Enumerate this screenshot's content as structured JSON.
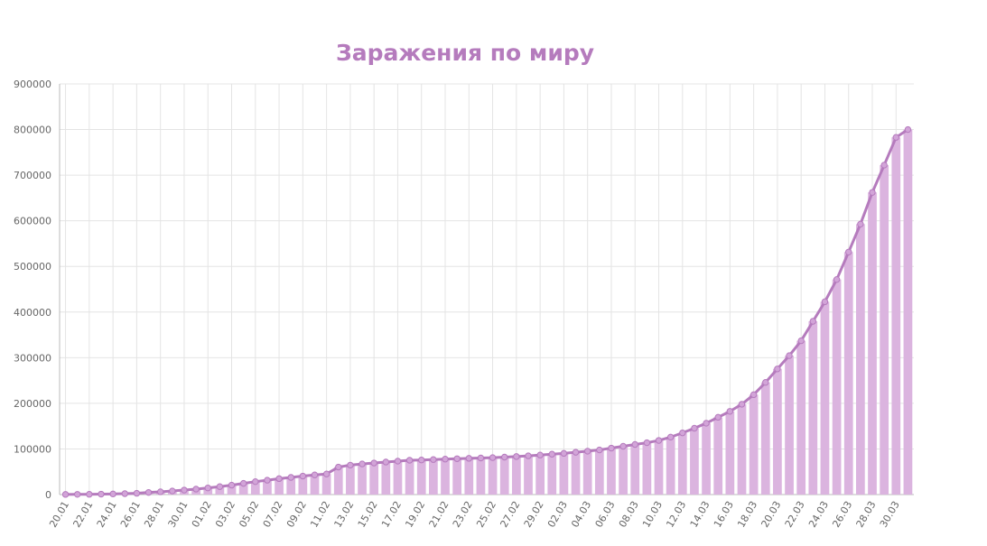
{
  "chart_data": {
    "type": "bar",
    "title": "Заражения по миру",
    "xlabel": "",
    "ylabel": "",
    "ylim": [
      0,
      900000
    ],
    "yticks": [
      0,
      100000,
      200000,
      300000,
      400000,
      500000,
      600000,
      700000,
      800000,
      900000
    ],
    "grid": true,
    "legend": "none",
    "colors": {
      "bar": "#dbb4df",
      "line": "#b57bbd",
      "title": "#b57bbd",
      "grid": "#e4e4e4",
      "axis": "#bbbbbb"
    },
    "categories": [
      "20.01",
      "21.01",
      "22.01",
      "23.01",
      "24.01",
      "25.01",
      "26.01",
      "27.01",
      "28.01",
      "29.01",
      "30.01",
      "31.01",
      "01.02",
      "02.02",
      "03.02",
      "04.02",
      "05.02",
      "06.02",
      "07.02",
      "08.02",
      "09.02",
      "10.02",
      "11.02",
      "12.02",
      "13.02",
      "14.02",
      "15.02",
      "16.02",
      "17.02",
      "18.02",
      "19.02",
      "20.02",
      "21.02",
      "22.02",
      "23.02",
      "24.02",
      "25.02",
      "26.02",
      "27.02",
      "28.02",
      "29.02",
      "01.03",
      "02.03",
      "03.03",
      "04.03",
      "05.03",
      "06.03",
      "07.03",
      "08.03",
      "09.03",
      "10.03",
      "11.03",
      "12.03",
      "13.03",
      "14.03",
      "15.03",
      "16.03",
      "17.03",
      "18.03",
      "19.03",
      "20.03",
      "21.03",
      "22.03",
      "23.03",
      "24.03",
      "25.03",
      "26.03",
      "27.03",
      "28.03",
      "29.03",
      "30.03",
      "31.03"
    ],
    "x_tick_labels": [
      "20.01",
      "22.01",
      "24.01",
      "26.01",
      "28.01",
      "30.01",
      "01.02",
      "03.02",
      "05.02",
      "07.02",
      "09.02",
      "11.02",
      "13.02",
      "15.02",
      "17.02",
      "19.02",
      "21.02",
      "23.02",
      "25.02",
      "27.02",
      "29.02",
      "02.03",
      "04.03",
      "06.03",
      "08.03",
      "10.03",
      "12.03",
      "14.03",
      "16.03",
      "18.03",
      "20.03",
      "22.03",
      "24.03",
      "26.03",
      "28.03",
      "30.03"
    ],
    "series": [
      {
        "values": [
          300,
          400,
          600,
          900,
          1300,
          2000,
          2800,
          4600,
          6000,
          7800,
          9800,
          11900,
          14500,
          17400,
          20600,
          24500,
          28300,
          31500,
          34900,
          37600,
          40500,
          43100,
          45100,
          60300,
          64500,
          67100,
          69200,
          71300,
          73300,
          75200,
          75700,
          76700,
          77700,
          78600,
          79400,
          80100,
          80900,
          82100,
          83300,
          84900,
          86600,
          88500,
          90300,
          92700,
          95100,
          97800,
          101800,
          105800,
          109800,
          113600,
          118600,
          125900,
          135200,
          145400,
          156400,
          169400,
          182400,
          198000,
          218900,
          245800,
          275400,
          304500,
          337100,
          379800,
          422600,
          471400,
          531500,
          592800,
          662300,
          722100,
          782900,
          800000
        ]
      }
    ]
  }
}
